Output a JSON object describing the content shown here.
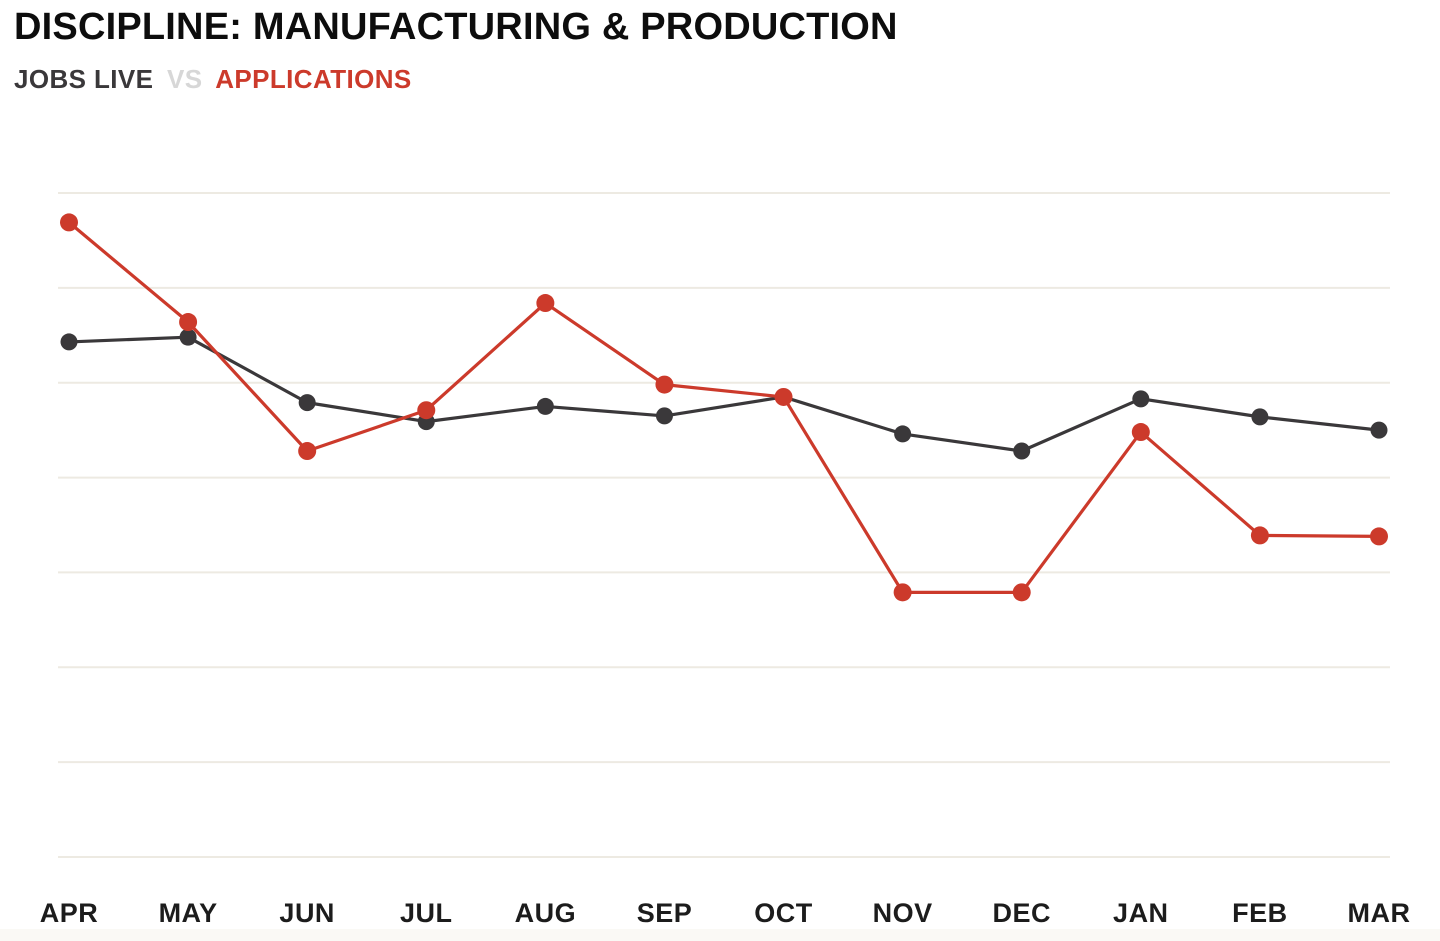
{
  "header": {
    "title": "DISCIPLINE: MANUFACTURING & PRODUCTION",
    "legend": {
      "jobs_live": "JOBS LIVE",
      "separator": "VS",
      "applications": "APPLICATIONS"
    }
  },
  "colors": {
    "title_text": "#0d0d0d",
    "jobs_live": "#3a383a",
    "applications": "#cc3a2b",
    "vs_separator": "#d7d7d7",
    "gridline": "#edeae2",
    "month_label": "#1c1c1c",
    "background": "#ffffff",
    "bottom_strip": "#faf9f5"
  },
  "chart_data": {
    "type": "line",
    "title": "DISCIPLINE: MANUFACTURING & PRODUCTION",
    "subtitle_legend": "JOBS LIVE VS APPLICATIONS",
    "categories": [
      "APR",
      "MAY",
      "JUN",
      "JUL",
      "AUG",
      "SEP",
      "OCT",
      "NOV",
      "DEC",
      "JAN",
      "FEB",
      "MAR"
    ],
    "series": [
      {
        "name": "JOBS LIVE",
        "color": "#3a383a",
        "values": [
          5.43,
          5.48,
          4.79,
          4.59,
          4.75,
          4.65,
          4.85,
          4.46,
          4.28,
          4.83,
          4.64,
          4.5
        ]
      },
      {
        "name": "APPLICATIONS",
        "color": "#cc3a2b",
        "values": [
          6.69,
          5.64,
          4.28,
          4.71,
          5.84,
          4.98,
          4.85,
          2.79,
          2.79,
          4.48,
          3.39,
          3.38
        ]
      }
    ],
    "xlabel": "",
    "ylabel": "",
    "ylim": [
      0,
      7
    ],
    "gridlines": 8,
    "grid": "horizontal only, no y-axis tick labels shown",
    "legend_position": "subtitle above chart, colored text",
    "note": "y values estimated in gridline units above bottom axis; chart displays no numeric axis"
  }
}
